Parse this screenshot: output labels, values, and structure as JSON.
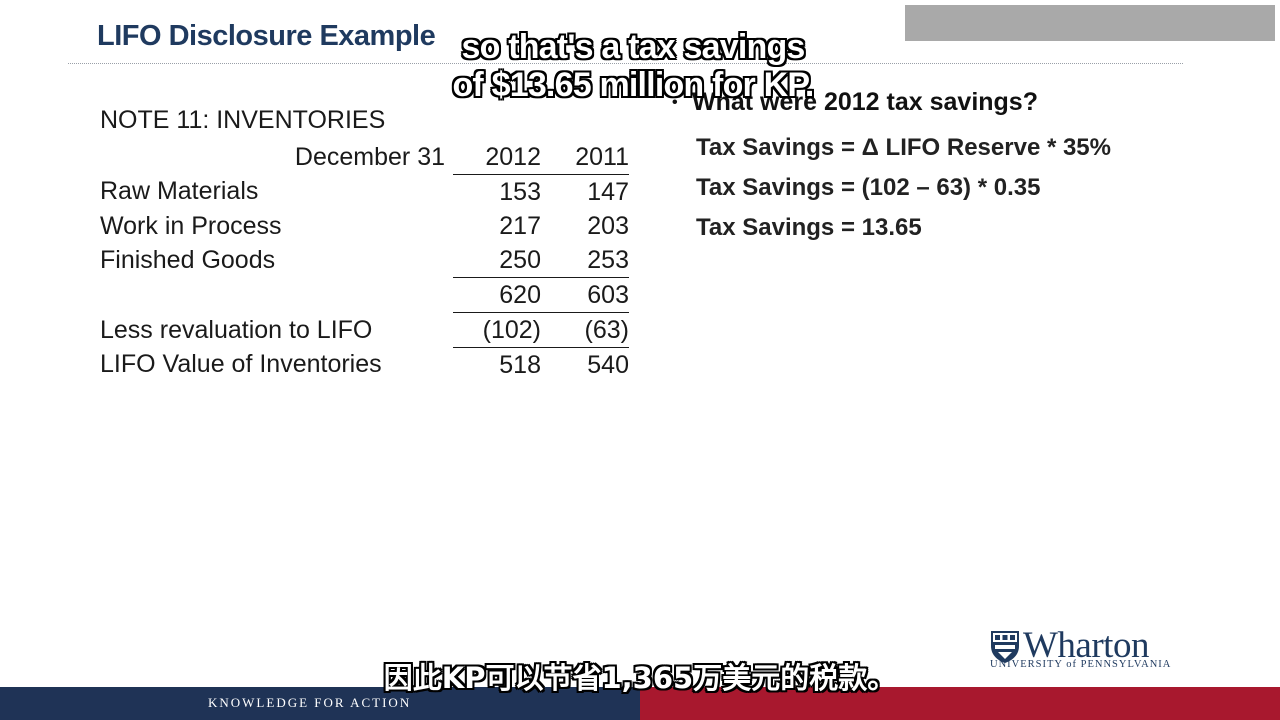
{
  "slide": {
    "title": "LIFO Disclosure Example"
  },
  "note": {
    "heading": "NOTE 11: INVENTORIES",
    "header_label": "December 31",
    "years": [
      "2012",
      "2011"
    ],
    "rows": [
      {
        "label": "Raw Materials",
        "v2012": "153",
        "v2011": "147"
      },
      {
        "label": "Work in Process",
        "v2012": "217",
        "v2011": "203"
      },
      {
        "label": "Finished Goods",
        "v2012": "250",
        "v2011": "253"
      },
      {
        "label": "",
        "v2012": "620",
        "v2011": "603"
      },
      {
        "label": "Less revaluation to LIFO",
        "v2012": "(102)",
        "v2011": "(63)"
      },
      {
        "label": "LIFO Value of Inventories",
        "v2012": "518",
        "v2011": "540"
      }
    ]
  },
  "bullet": {
    "marker": "•",
    "question": "What were 2012 tax savings?",
    "lines": [
      "Tax Savings = Δ LIFO Reserve * 35%",
      "Tax Savings = (102 – 63) * 0.35",
      "Tax Savings = 13.65"
    ]
  },
  "subtitles": {
    "en_line1": "so that's a tax savings",
    "en_line2": "of $13.65 million for KP.",
    "zh": "因此KP可以节省1,365万美元的税款。"
  },
  "branding": {
    "logo_word": "Wharton",
    "logo_sub": "UNIVERSITY of PENNSYLVANIA",
    "tagline": "KNOWLEDGE FOR ACTION",
    "navy": "#1f3356",
    "red": "#a8182e"
  }
}
